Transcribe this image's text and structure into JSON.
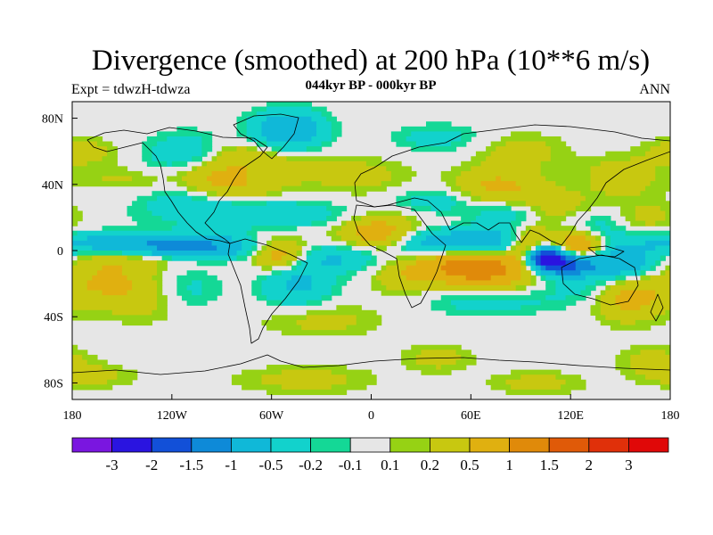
{
  "title": "Divergence (smoothed) at 200 hPa (10**6 m/s)",
  "subtitle": "044kyr BP - 000kyr BP",
  "left_string": "Expt = tdwzH-tdwza",
  "right_string": "ANN",
  "colors": {
    "neutral": "#e6e6e6",
    "coast": "#000000",
    "levels": [
      "#7a16e0",
      "#2a14e0",
      "#1250d8",
      "#0e8ad8",
      "#10b8d8",
      "#12d2cc",
      "#14d896",
      "#e6e6e6",
      "#96d214",
      "#c8c810",
      "#e0b010",
      "#e08a0a",
      "#e05a08",
      "#e0300a",
      "#e00808"
    ]
  },
  "chart_data": {
    "type": "heatmap",
    "x_range": [
      -180,
      180
    ],
    "y_range": [
      -90,
      90
    ],
    "x_ticks": [
      {
        "value": -180,
        "label": "180"
      },
      {
        "value": -120,
        "label": "120W"
      },
      {
        "value": -60,
        "label": "60W"
      },
      {
        "value": 0,
        "label": "0"
      },
      {
        "value": 60,
        "label": "60E"
      },
      {
        "value": 120,
        "label": "120E"
      },
      {
        "value": 180,
        "label": "180"
      }
    ],
    "y_ticks": [
      {
        "value": 80,
        "label": "80N"
      },
      {
        "value": 40,
        "label": "40N"
      },
      {
        "value": 0,
        "label": "0"
      },
      {
        "value": -40,
        "label": "40S"
      },
      {
        "value": -80,
        "label": "80S"
      }
    ],
    "colorbar_labels": [
      "-3",
      "-2",
      "-1.5",
      "-1",
      "-0.5",
      "-0.2",
      "-0.1",
      "0.1",
      "0.2",
      "0.5",
      "1",
      "1.5",
      "2",
      "3"
    ],
    "features": [
      {
        "lon": -175,
        "lat": 60,
        "a": 0.35,
        "rl": 15,
        "rt": 6
      },
      {
        "lon": -150,
        "lat": 40,
        "a": 0.3,
        "rl": 20,
        "rt": 7
      },
      {
        "lon": -160,
        "lat": 35,
        "a": -0.2,
        "rl": 12,
        "rt": 4
      },
      {
        "lon": -118,
        "lat": 33,
        "a": -0.3,
        "rl": 22,
        "rt": 6
      },
      {
        "lon": -110,
        "lat": 58,
        "a": -0.5,
        "rl": 18,
        "rt": 9
      },
      {
        "lon": -100,
        "lat": 45,
        "a": 0.4,
        "rl": 15,
        "rt": 7
      },
      {
        "lon": -80,
        "lat": 55,
        "a": 0.5,
        "rl": 18,
        "rt": 8
      },
      {
        "lon": -80,
        "lat": 38,
        "a": 0.4,
        "rl": 20,
        "rt": 6
      },
      {
        "lon": -50,
        "lat": 73,
        "a": -1.0,
        "rl": 15,
        "rt": 8
      },
      {
        "lon": -40,
        "lat": 50,
        "a": 0.3,
        "rl": 15,
        "rt": 6
      },
      {
        "lon": -5,
        "lat": 45,
        "a": 0.3,
        "rl": 20,
        "rt": 8
      },
      {
        "lon": -70,
        "lat": 22,
        "a": -0.5,
        "rl": 40,
        "rt": 6
      },
      {
        "lon": -170,
        "lat": 4,
        "a": -0.6,
        "rl": 35,
        "rt": 5
      },
      {
        "lon": -110,
        "lat": 2,
        "a": -1.2,
        "rl": 30,
        "rt": 5
      },
      {
        "lon": -140,
        "lat": -4,
        "a": 0.4,
        "rl": 30,
        "rt": 5
      },
      {
        "lon": -160,
        "lat": -18,
        "a": 0.5,
        "rl": 20,
        "rt": 10
      },
      {
        "lon": -130,
        "lat": -30,
        "a": 0.3,
        "rl": 25,
        "rt": 10
      },
      {
        "lon": -110,
        "lat": -25,
        "a": -0.4,
        "rl": 15,
        "rt": 10
      },
      {
        "lon": -55,
        "lat": -2,
        "a": 0.9,
        "rl": 12,
        "rt": 7
      },
      {
        "lon": -45,
        "lat": -20,
        "a": -0.6,
        "rl": 15,
        "rt": 10
      },
      {
        "lon": -20,
        "lat": -5,
        "a": -0.5,
        "rl": 20,
        "rt": 6
      },
      {
        "lon": -30,
        "lat": -42,
        "a": 0.3,
        "rl": 25,
        "rt": 7
      },
      {
        "lon": 0,
        "lat": 10,
        "a": 0.5,
        "rl": 15,
        "rt": 6
      },
      {
        "lon": 15,
        "lat": 15,
        "a": 0.4,
        "rl": 20,
        "rt": 8
      },
      {
        "lon": 20,
        "lat": -15,
        "a": 0.4,
        "rl": 15,
        "rt": 8
      },
      {
        "lon": 30,
        "lat": 5,
        "a": -0.5,
        "rl": 12,
        "rt": 8
      },
      {
        "lon": 40,
        "lat": 30,
        "a": -0.4,
        "rl": 20,
        "rt": 6
      },
      {
        "lon": 65,
        "lat": 5,
        "a": -1.0,
        "rl": 20,
        "rt": 6
      },
      {
        "lon": 75,
        "lat": 38,
        "a": 0.6,
        "rl": 20,
        "rt": 8
      },
      {
        "lon": 85,
        "lat": 22,
        "a": -0.5,
        "rl": 15,
        "rt": 6
      },
      {
        "lon": 55,
        "lat": -8,
        "a": 1.0,
        "rl": 20,
        "rt": 6
      },
      {
        "lon": 70,
        "lat": -15,
        "a": 0.8,
        "rl": 20,
        "rt": 8
      },
      {
        "lon": 70,
        "lat": -30,
        "a": -0.4,
        "rl": 25,
        "rt": 6
      },
      {
        "lon": 95,
        "lat": 3,
        "a": 0.8,
        "rl": 10,
        "rt": 8
      },
      {
        "lon": 105,
        "lat": -5,
        "a": -2.5,
        "rl": 8,
        "rt": 5
      },
      {
        "lon": 120,
        "lat": -8,
        "a": -1.5,
        "rl": 10,
        "rt": 5
      },
      {
        "lon": 125,
        "lat": 3,
        "a": 1.3,
        "rl": 10,
        "rt": 6
      },
      {
        "lon": 110,
        "lat": 25,
        "a": 0.4,
        "rl": 20,
        "rt": 8
      },
      {
        "lon": 135,
        "lat": 15,
        "a": -0.4,
        "rl": 15,
        "rt": 8
      },
      {
        "lon": 150,
        "lat": -8,
        "a": -1.0,
        "rl": 15,
        "rt": 6
      },
      {
        "lon": 130,
        "lat": -22,
        "a": -0.3,
        "rl": 20,
        "rt": 8
      },
      {
        "lon": 155,
        "lat": -28,
        "a": 0.7,
        "rl": 15,
        "rt": 10
      },
      {
        "lon": 165,
        "lat": 20,
        "a": 0.3,
        "rl": 15,
        "rt": 8
      },
      {
        "lon": 150,
        "lat": 45,
        "a": 0.4,
        "rl": 15,
        "rt": 8
      },
      {
        "lon": 90,
        "lat": 60,
        "a": 0.3,
        "rl": 20,
        "rt": 8
      },
      {
        "lon": 40,
        "lat": 68,
        "a": -0.3,
        "rl": 20,
        "rt": 6
      },
      {
        "lon": -170,
        "lat": -76,
        "a": 0.3,
        "rl": 20,
        "rt": 5
      },
      {
        "lon": -40,
        "lat": -78,
        "a": 0.3,
        "rl": 30,
        "rt": 6
      },
      {
        "lon": 40,
        "lat": -65,
        "a": 0.3,
        "rl": 15,
        "rt": 6
      },
      {
        "lon": 100,
        "lat": -80,
        "a": 0.3,
        "rl": 20,
        "rt": 5
      },
      {
        "lon": 170,
        "lat": -66,
        "a": 0.3,
        "rl": 15,
        "rt": 6
      }
    ]
  }
}
